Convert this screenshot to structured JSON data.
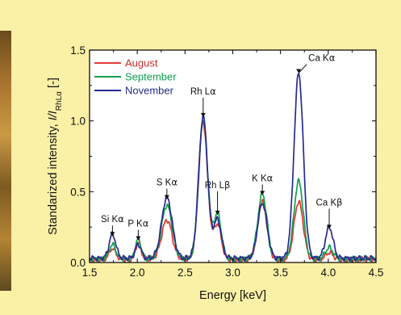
{
  "chart_data": {
    "type": "line",
    "xlabel": "Energy [keV]",
    "ylabel_main": "Standarized intensity, ",
    "ylabel_ratio_num": "I",
    "ylabel_ratio_sep": "/",
    "ylabel_ratio_den": "I",
    "ylabel_ratio_sub": "RhLα",
    "ylabel_unit": " [-]",
    "xlim": [
      1.5,
      4.5
    ],
    "ylim": [
      0.0,
      1.5
    ],
    "xticks": [
      "1.5",
      "2.0",
      "2.5",
      "3.0",
      "3.5",
      "4.0",
      "4.5"
    ],
    "yticks": [
      "0.0",
      "0.5",
      "1.0",
      "1.5"
    ],
    "legend_position": "top-left",
    "series": [
      {
        "name": "August",
        "color": "#e03a34",
        "baseline": 0.02,
        "peaks": [
          {
            "x": 1.74,
            "h": 0.08,
            "w": 0.035
          },
          {
            "x": 2.01,
            "h": 0.12,
            "w": 0.03
          },
          {
            "x": 2.31,
            "h": 0.28,
            "w": 0.055
          },
          {
            "x": 2.69,
            "h": 0.97,
            "w": 0.047
          },
          {
            "x": 2.84,
            "h": 0.25,
            "w": 0.04
          },
          {
            "x": 3.31,
            "h": 0.41,
            "w": 0.048
          },
          {
            "x": 3.69,
            "h": 0.41,
            "w": 0.048
          },
          {
            "x": 4.01,
            "h": 0.05,
            "w": 0.04
          }
        ]
      },
      {
        "name": "September",
        "color": "#12a04e",
        "baseline": 0.025,
        "peaks": [
          {
            "x": 1.74,
            "h": 0.1,
            "w": 0.035
          },
          {
            "x": 2.01,
            "h": 0.14,
            "w": 0.03
          },
          {
            "x": 2.31,
            "h": 0.38,
            "w": 0.055
          },
          {
            "x": 2.69,
            "h": 0.99,
            "w": 0.047
          },
          {
            "x": 2.84,
            "h": 0.32,
            "w": 0.04
          },
          {
            "x": 3.31,
            "h": 0.46,
            "w": 0.048
          },
          {
            "x": 3.69,
            "h": 0.55,
            "w": 0.048
          },
          {
            "x": 4.01,
            "h": 0.08,
            "w": 0.04
          }
        ]
      },
      {
        "name": "November",
        "color": "#262c8e",
        "baseline": 0.03,
        "peaks": [
          {
            "x": 1.74,
            "h": 0.17,
            "w": 0.035
          },
          {
            "x": 2.01,
            "h": 0.1,
            "w": 0.03
          },
          {
            "x": 2.31,
            "h": 0.43,
            "w": 0.055
          },
          {
            "x": 2.69,
            "h": 1.0,
            "w": 0.047
          },
          {
            "x": 2.84,
            "h": 0.27,
            "w": 0.04
          },
          {
            "x": 3.31,
            "h": 0.39,
            "w": 0.048
          },
          {
            "x": 3.69,
            "h": 1.31,
            "w": 0.048
          },
          {
            "x": 4.01,
            "h": 0.22,
            "w": 0.04
          }
        ]
      }
    ],
    "annotations": [
      {
        "main": "Si K",
        "greek": "α",
        "x": 1.74,
        "y": 0.17
      },
      {
        "main": "P K",
        "greek": "α",
        "x": 2.01,
        "y": 0.14
      },
      {
        "main": "S K",
        "greek": "α",
        "x": 2.31,
        "y": 0.43
      },
      {
        "main": "Rh L",
        "greek": "α",
        "x": 2.69,
        "y": 1.01
      },
      {
        "main": "Rh L",
        "greek": "β",
        "x": 2.84,
        "y": 0.32
      },
      {
        "main": "K K",
        "greek": "α",
        "x": 3.31,
        "y": 0.46
      },
      {
        "main": "Ca K",
        "greek": "α",
        "x": 3.69,
        "y": 1.32
      },
      {
        "main": "Ca K",
        "greek": "β",
        "x": 4.01,
        "y": 0.22
      }
    ],
    "colors": {
      "background": "#fbf1a6",
      "plot_background": "#ffffff"
    }
  }
}
